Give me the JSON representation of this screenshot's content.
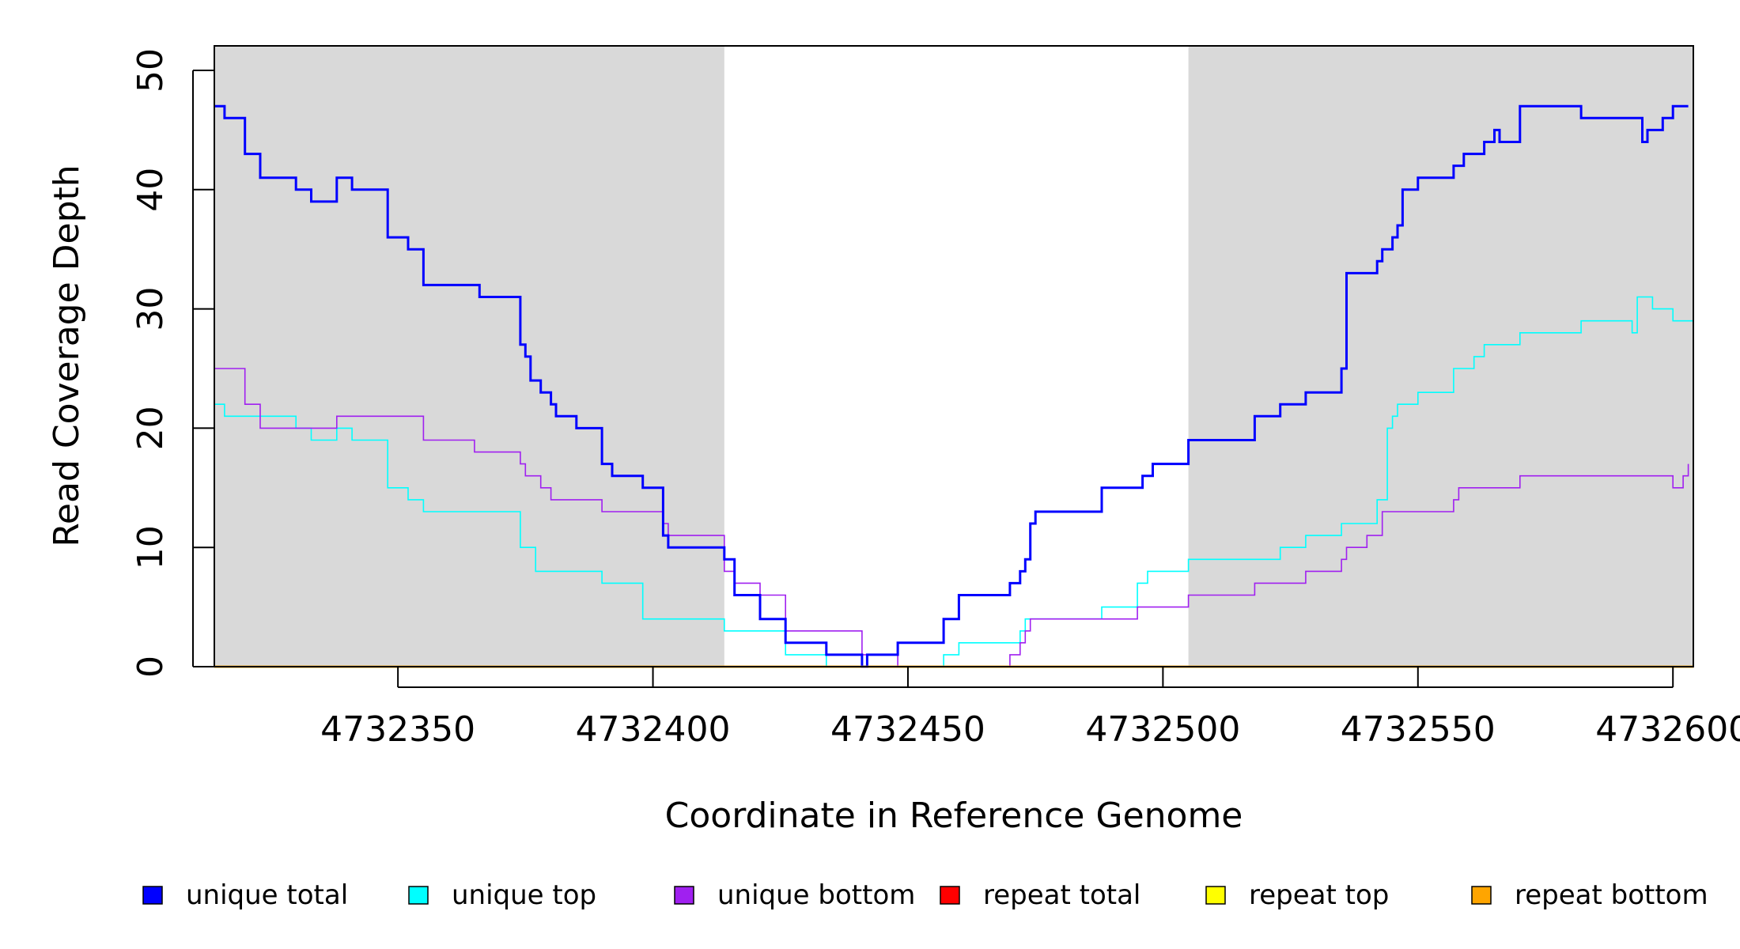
{
  "chart_data": {
    "type": "line",
    "xlabel": "Coordinate in Reference Genome",
    "ylabel": "Read Coverage Depth",
    "xlim": [
      4732314,
      4732604
    ],
    "ylim": [
      0,
      52
    ],
    "y_ticks": [
      "0",
      "10",
      "20",
      "30",
      "40",
      "50"
    ],
    "x_ticks": [
      "4732350",
      "4732400",
      "4732450",
      "4732500",
      "4732550",
      "4732600"
    ],
    "shaded_regions": [
      [
        4732314,
        4732414
      ],
      [
        4732505,
        4732604
      ]
    ],
    "shade_color": "#d9d9d9",
    "step_style": "steps-post",
    "series": [
      {
        "name": "unique total",
        "color": "#0000ff",
        "x": [
          4732314,
          4732316,
          4732320,
          4732323,
          4732330,
          4732333,
          4732338,
          4732341,
          4732348,
          4732352,
          4732355,
          4732366,
          4732374,
          4732375,
          4732376,
          4732378,
          4732380,
          4732381,
          4732385,
          4732390,
          4732392,
          4732398,
          4732402,
          4732403,
          4732414,
          4732416,
          4732421,
          4732426,
          4732434,
          4732441,
          4732442,
          4732448,
          4732457,
          4732460,
          4732470,
          4732472,
          4732473,
          4732474,
          4732475,
          4732488,
          4732496,
          4732498,
          4732505,
          4732518,
          4732523,
          4732528,
          4732535,
          4732536,
          4732542,
          4732543,
          4732545,
          4732546,
          4732547,
          4732550,
          4732557,
          4732559,
          4732563,
          4732565,
          4732566,
          4732570,
          4732582,
          4732594,
          4732595,
          4732598,
          4732600,
          4732602,
          4732603
        ],
        "values": [
          47,
          46,
          43,
          41,
          40,
          39,
          41,
          40,
          36,
          35,
          32,
          31,
          27,
          26,
          24,
          23,
          22,
          21,
          20,
          17,
          16,
          15,
          11,
          10,
          9,
          6,
          4,
          2,
          1,
          0,
          1,
          2,
          4,
          6,
          7,
          8,
          9,
          12,
          13,
          15,
          16,
          17,
          19,
          21,
          22,
          23,
          25,
          33,
          34,
          35,
          36,
          37,
          40,
          41,
          42,
          43,
          44,
          45,
          44,
          47,
          46,
          44,
          45,
          46,
          47,
          47,
          47
        ]
      },
      {
        "name": "unique top",
        "color": "#00ffff",
        "x": [
          4732314,
          4732316,
          4732330,
          4732333,
          4732338,
          4732341,
          4732348,
          4732352,
          4732355,
          4732374,
          4732377,
          4732390,
          4732398,
          4732414,
          4732426,
          4732434,
          4732442,
          4732448,
          4732457,
          4732460,
          4732470,
          4732472,
          4732473,
          4732488,
          4732495,
          4732497,
          4732505,
          4732523,
          4732528,
          4732535,
          4732542,
          4732544,
          4732545,
          4732546,
          4732550,
          4732557,
          4732561,
          4732563,
          4732570,
          4732582,
          4732592,
          4732593,
          4732596,
          4732600,
          4732604
        ],
        "values": [
          22,
          21,
          20,
          19,
          20,
          19,
          15,
          14,
          13,
          10,
          8,
          7,
          4,
          3,
          1,
          0,
          0,
          0,
          1,
          2,
          2,
          3,
          4,
          5,
          7,
          8,
          9,
          10,
          11,
          12,
          14,
          20,
          21,
          22,
          23,
          25,
          26,
          27,
          28,
          29,
          28,
          31,
          30,
          29,
          30
        ]
      },
      {
        "name": "unique bottom",
        "color": "#a020f0",
        "x": [
          4732314,
          4732320,
          4732323,
          4732338,
          4732355,
          4732365,
          4732374,
          4732375,
          4732378,
          4732380,
          4732390,
          4732402,
          4732403,
          4732414,
          4732416,
          4732421,
          4732426,
          4732441,
          4732448,
          4732470,
          4732472,
          4732473,
          4732474,
          4732475,
          4732495,
          4732505,
          4732518,
          4732528,
          4732535,
          4732536,
          4732540,
          4732543,
          4732557,
          4732558,
          4732570,
          4732584,
          4732600,
          4732602,
          4732603
        ],
        "values": [
          25,
          22,
          20,
          21,
          19,
          18,
          17,
          16,
          15,
          14,
          13,
          12,
          11,
          8,
          7,
          6,
          3,
          1,
          0,
          1,
          2,
          3,
          4,
          4,
          5,
          6,
          7,
          8,
          9,
          10,
          11,
          13,
          14,
          15,
          16,
          16,
          15,
          16,
          17
        ]
      },
      {
        "name": "repeat total",
        "color": "#ff0000",
        "x": [
          4732314,
          4732604
        ],
        "values": [
          0,
          0
        ]
      },
      {
        "name": "repeat top",
        "color": "#ffff00",
        "x": [
          4732314,
          4732604
        ],
        "values": [
          0,
          0
        ]
      },
      {
        "name": "repeat bottom",
        "color": "#ffa500",
        "x": [
          4732314,
          4732604
        ],
        "values": [
          0,
          0
        ]
      }
    ],
    "legend": {
      "placement": "bottom",
      "entries": [
        {
          "label": "unique total",
          "color": "#0000ff"
        },
        {
          "label": "unique top",
          "color": "#00ffff"
        },
        {
          "label": "unique bottom",
          "color": "#a020f0"
        },
        {
          "label": "repeat total",
          "color": "#ff0000"
        },
        {
          "label": "repeat top",
          "color": "#ffff00"
        },
        {
          "label": "repeat bottom",
          "color": "#ffa500"
        }
      ]
    }
  }
}
